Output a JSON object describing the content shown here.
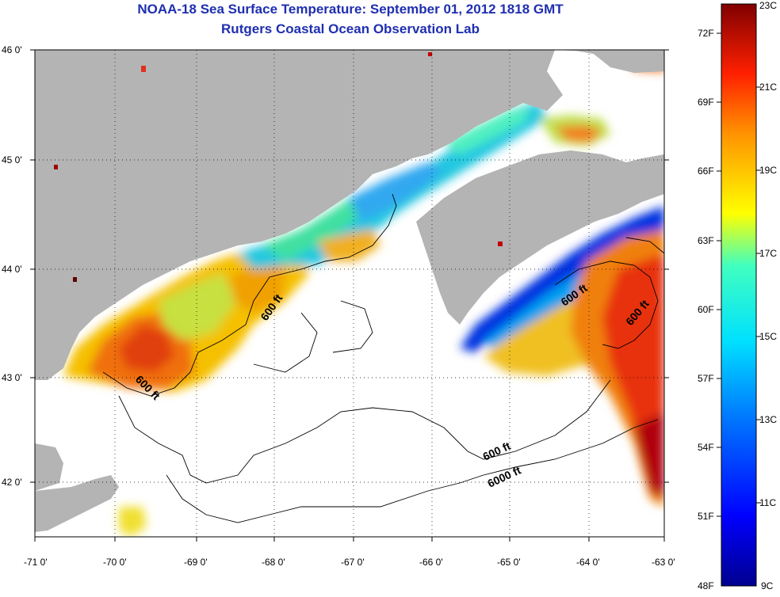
{
  "header": {
    "title": "NOAA-18 Sea Surface Temperature:  September 01, 2012 1818 GMT",
    "subtitle": "Rutgers Coastal Ocean Observation Lab"
  },
  "axes": {
    "x_ticks": [
      "-71 0'",
      "-70 0'",
      "-69 0'",
      "-68 0'",
      "-67 0'",
      "-66 0'",
      "-65 0'",
      "-64 0'",
      "-63 0'"
    ],
    "y_ticks": [
      "46 0'",
      "45 0'",
      "44 0'",
      "43 0'",
      "42 0'"
    ],
    "lon_range": [
      -71.0,
      -63.0
    ],
    "lat_range": [
      41.5,
      46.0
    ]
  },
  "contour_labels": [
    "600 ft",
    "600 ft",
    "600 ft",
    "600 ft",
    "600 ft",
    "6000 ft"
  ],
  "colorbar": {
    "fahrenheit_labels": [
      "72F",
      "69F",
      "66F",
      "63F",
      "60F",
      "57F",
      "54F",
      "51F",
      "48F"
    ],
    "celsius_labels": [
      "23C",
      "21C",
      "19C",
      "17C",
      "15C",
      "13C",
      "11C",
      "9C"
    ],
    "range_c": [
      9,
      23
    ]
  },
  "colors": {
    "land": "#b4b4b4",
    "title": "#1f2fb0",
    "background": "#ffffff"
  }
}
